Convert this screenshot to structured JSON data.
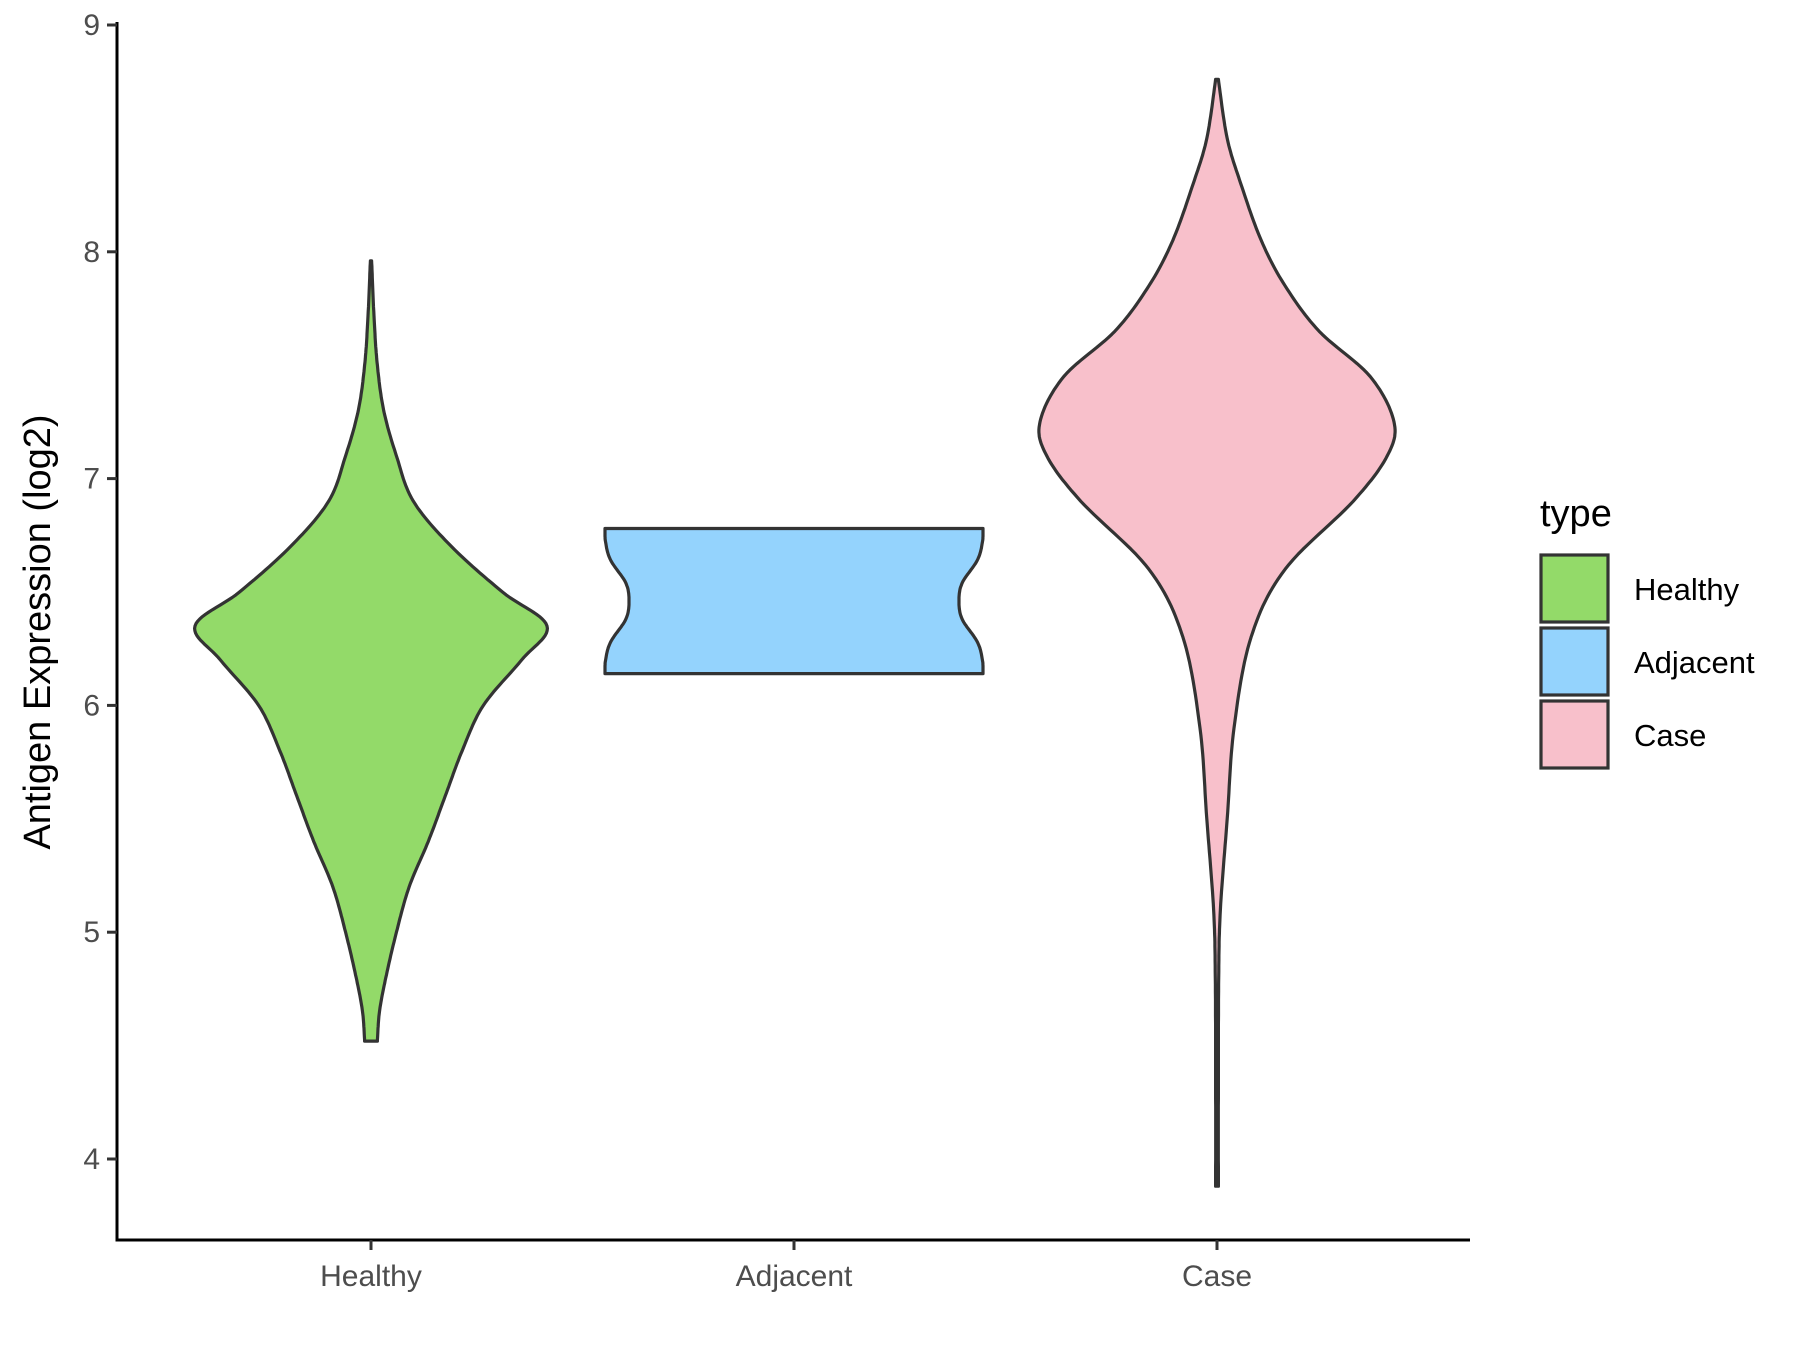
{
  "chart_data": {
    "type": "violin",
    "categories": [
      "Healthy",
      "Adjacent",
      "Case"
    ],
    "xlabel": "",
    "ylabel": "Antigen Expression (log2)",
    "ylim": [
      3.65,
      9.0
    ],
    "yticks": [
      4,
      5,
      6,
      7,
      8,
      9
    ],
    "grid": false,
    "legend": {
      "title": "type",
      "placement": "right",
      "entries": [
        "Healthy",
        "Adjacent",
        "Case"
      ]
    },
    "colors": {
      "Healthy": "#93DA69",
      "Adjacent": "#94D3FD",
      "Case": "#F8C0CB",
      "outline": "#333333"
    },
    "series": [
      {
        "category": "Healthy",
        "min": 4.52,
        "max": 7.96,
        "density_profile": [
          [
            4.52,
            0.03
          ],
          [
            4.65,
            0.04
          ],
          [
            4.8,
            0.07
          ],
          [
            5.0,
            0.12
          ],
          [
            5.2,
            0.18
          ],
          [
            5.4,
            0.27
          ],
          [
            5.6,
            0.35
          ],
          [
            5.8,
            0.43
          ],
          [
            6.0,
            0.53
          ],
          [
            6.2,
            0.71
          ],
          [
            6.35,
            0.83
          ],
          [
            6.5,
            0.62
          ],
          [
            6.7,
            0.38
          ],
          [
            6.9,
            0.2
          ],
          [
            7.1,
            0.12
          ],
          [
            7.3,
            0.06
          ],
          [
            7.5,
            0.03
          ],
          [
            7.7,
            0.015
          ],
          [
            7.96,
            0.003
          ]
        ]
      },
      {
        "category": "Adjacent",
        "min": 6.14,
        "max": 6.78,
        "density_profile": [
          [
            6.14,
            1.0
          ],
          [
            6.2,
            0.997
          ],
          [
            6.28,
            0.97
          ],
          [
            6.38,
            0.89
          ],
          [
            6.46,
            0.873
          ],
          [
            6.54,
            0.89
          ],
          [
            6.64,
            0.97
          ],
          [
            6.72,
            0.997
          ],
          [
            6.78,
            1.0
          ]
        ]
      },
      {
        "category": "Case",
        "min": 3.88,
        "max": 8.76,
        "density_profile": [
          [
            3.88,
            0.004
          ],
          [
            4.3,
            0.004
          ],
          [
            4.8,
            0.005
          ],
          [
            5.1,
            0.01
          ],
          [
            5.5,
            0.03
          ],
          [
            5.9,
            0.05
          ],
          [
            6.3,
            0.1
          ],
          [
            6.6,
            0.2
          ],
          [
            6.9,
            0.4
          ],
          [
            7.1,
            0.5
          ],
          [
            7.25,
            0.52
          ],
          [
            7.45,
            0.45
          ],
          [
            7.65,
            0.3
          ],
          [
            7.85,
            0.2
          ],
          [
            8.05,
            0.13
          ],
          [
            8.3,
            0.07
          ],
          [
            8.5,
            0.03
          ],
          [
            8.76,
            0.004
          ]
        ]
      }
    ]
  }
}
